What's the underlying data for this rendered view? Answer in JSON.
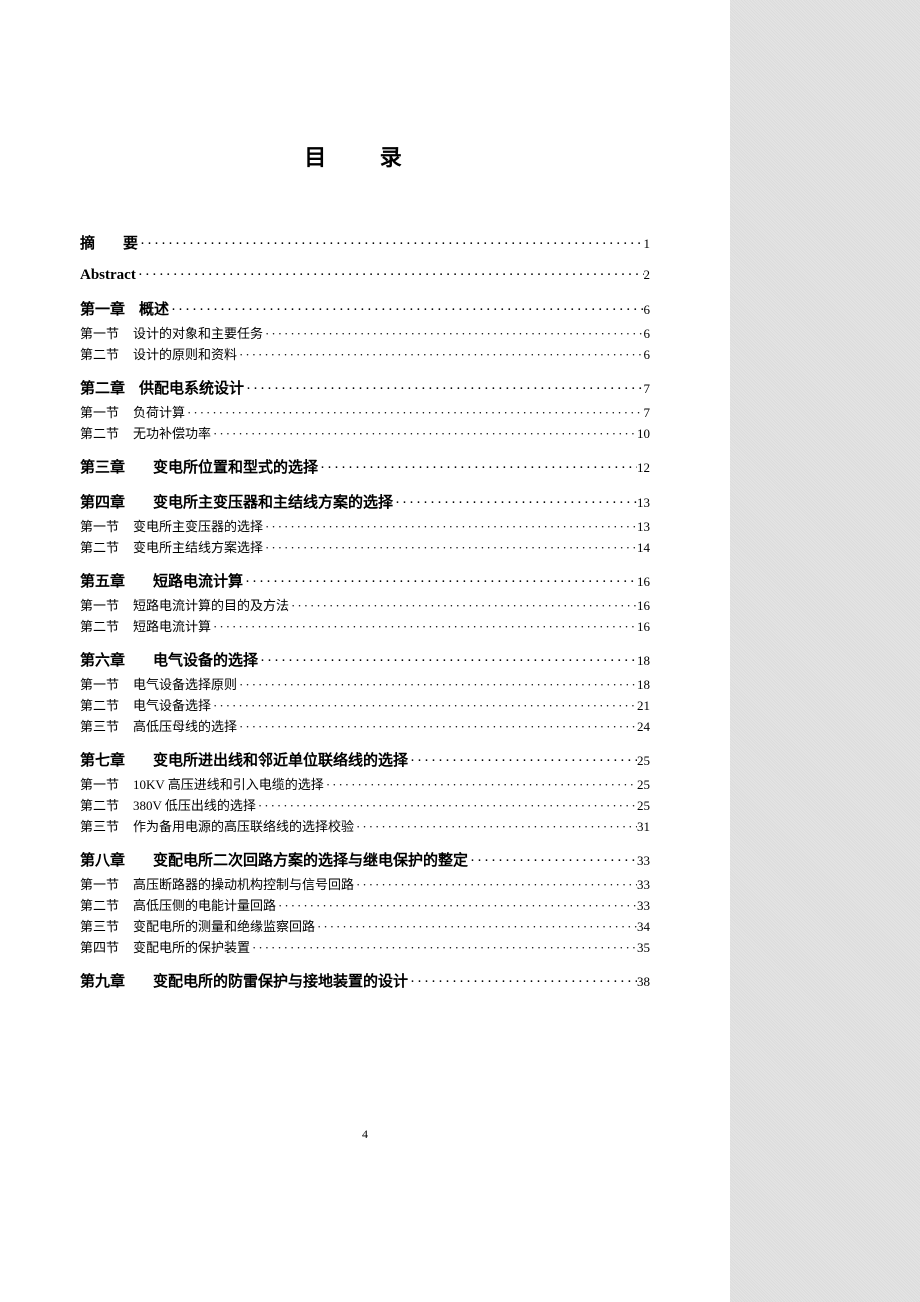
{
  "title": "目 录",
  "pageNumber": "4",
  "entries": [
    {
      "level": "main",
      "label": "摘<span class='gap'></span><span class='gap'></span>要",
      "page": "1"
    },
    {
      "level": "main",
      "label": "Abstract",
      "page": "2"
    },
    {
      "level": "main",
      "label": "第一章<span class='gap'></span>概述",
      "page": "6"
    },
    {
      "level": "sub",
      "label": "第一节<span class='gap'></span>设计的对象和主要任务",
      "page": "6"
    },
    {
      "level": "sub",
      "label": "第二节<span class='gap'></span>设计的原则和资料",
      "page": "6"
    },
    {
      "level": "main",
      "label": "第二章<span class='gap'></span>供配电系统设计",
      "page": "7"
    },
    {
      "level": "sub",
      "label": "第一节<span class='gap'></span>负荷计算",
      "page": "7"
    },
    {
      "level": "sub",
      "label": "第二节<span class='gap'></span>无功补偿功率",
      "page": "10"
    },
    {
      "level": "main",
      "label": "第三章<span class='gap'></span><span class='gap'></span>变电所位置和型式的选择",
      "page": "12"
    },
    {
      "level": "main",
      "label": "第四章<span class='gap'></span><span class='gap'></span>变电所主变压器和主结线方案的选择",
      "page": "13"
    },
    {
      "level": "sub",
      "label": "第一节<span class='gap'></span>变电所主变压器的选择",
      "page": "13"
    },
    {
      "level": "sub",
      "label": "第二节<span class='gap'></span>变电所主结线方案选择",
      "page": "14"
    },
    {
      "level": "main",
      "label": "第五章<span class='gap'></span><span class='gap'></span>短路电流计算 ",
      "page": "16"
    },
    {
      "level": "sub",
      "label": "第一节<span class='gap'></span>短路电流计算的目的及方法",
      "page": "16"
    },
    {
      "level": "sub",
      "label": "第二节<span class='gap'></span>短路电流计算",
      "page": "16"
    },
    {
      "level": "main",
      "label": "第六章<span class='gap'></span><span class='gap'></span>电气设备的选择 ",
      "page": "18"
    },
    {
      "level": "sub",
      "label": "第一节<span class='gap'></span>电气设备选择原则",
      "page": "18"
    },
    {
      "level": "sub",
      "label": "第二节<span class='gap'></span>电气设备选择",
      "page": "21"
    },
    {
      "level": "sub",
      "label": "第三节<span class='gap'></span>高低压母线的选择",
      "page": "24"
    },
    {
      "level": "main",
      "label": "第七章<span class='gap'></span><span class='gap'></span>变电所进出线和邻近单位联络线的选择",
      "page": "25"
    },
    {
      "level": "sub",
      "label": "第一节<span class='gap'></span>10KV 高压进线和引入电缆的选择 ",
      "page": "25"
    },
    {
      "level": "sub",
      "label": "第二节<span class='gap'></span>380V 低压出线的选择",
      "page": "25"
    },
    {
      "level": "sub",
      "label": "第三节<span class='gap'></span>作为备用电源的高压联络线的选择校验",
      "page": "31"
    },
    {
      "level": "main",
      "label": "第八章<span class='gap'></span><span class='gap'></span>变配电所二次回路方案的选择与继电保护的整定",
      "page": "33"
    },
    {
      "level": "sub",
      "label": "第一节<span class='gap'></span>高压断路器的操动机构控制与信号回路",
      "page": "33"
    },
    {
      "level": "sub",
      "label": "第二节<span class='gap'></span>高低压侧的电能计量回路",
      "page": "33"
    },
    {
      "level": "sub",
      "label": "第三节<span class='gap'></span>变配电所的测量和绝缘监察回路",
      "page": "34"
    },
    {
      "level": "sub",
      "label": "第四节<span class='gap'></span>变配电所的保护装置",
      "page": "35"
    },
    {
      "level": "main",
      "label": "第九章<span class='gap'></span><span class='gap'></span>变配电所的防雷保护与接地装置的设计",
      "page": "38"
    }
  ],
  "colors": {
    "pageBackground": "#ffffff",
    "bodyBackground": "#e8e8e8",
    "textColor": "#000000"
  },
  "typography": {
    "titleFontSize": 22,
    "mainFontSize": 15,
    "subFontSize": 13,
    "pageNumFontSize": 12
  }
}
